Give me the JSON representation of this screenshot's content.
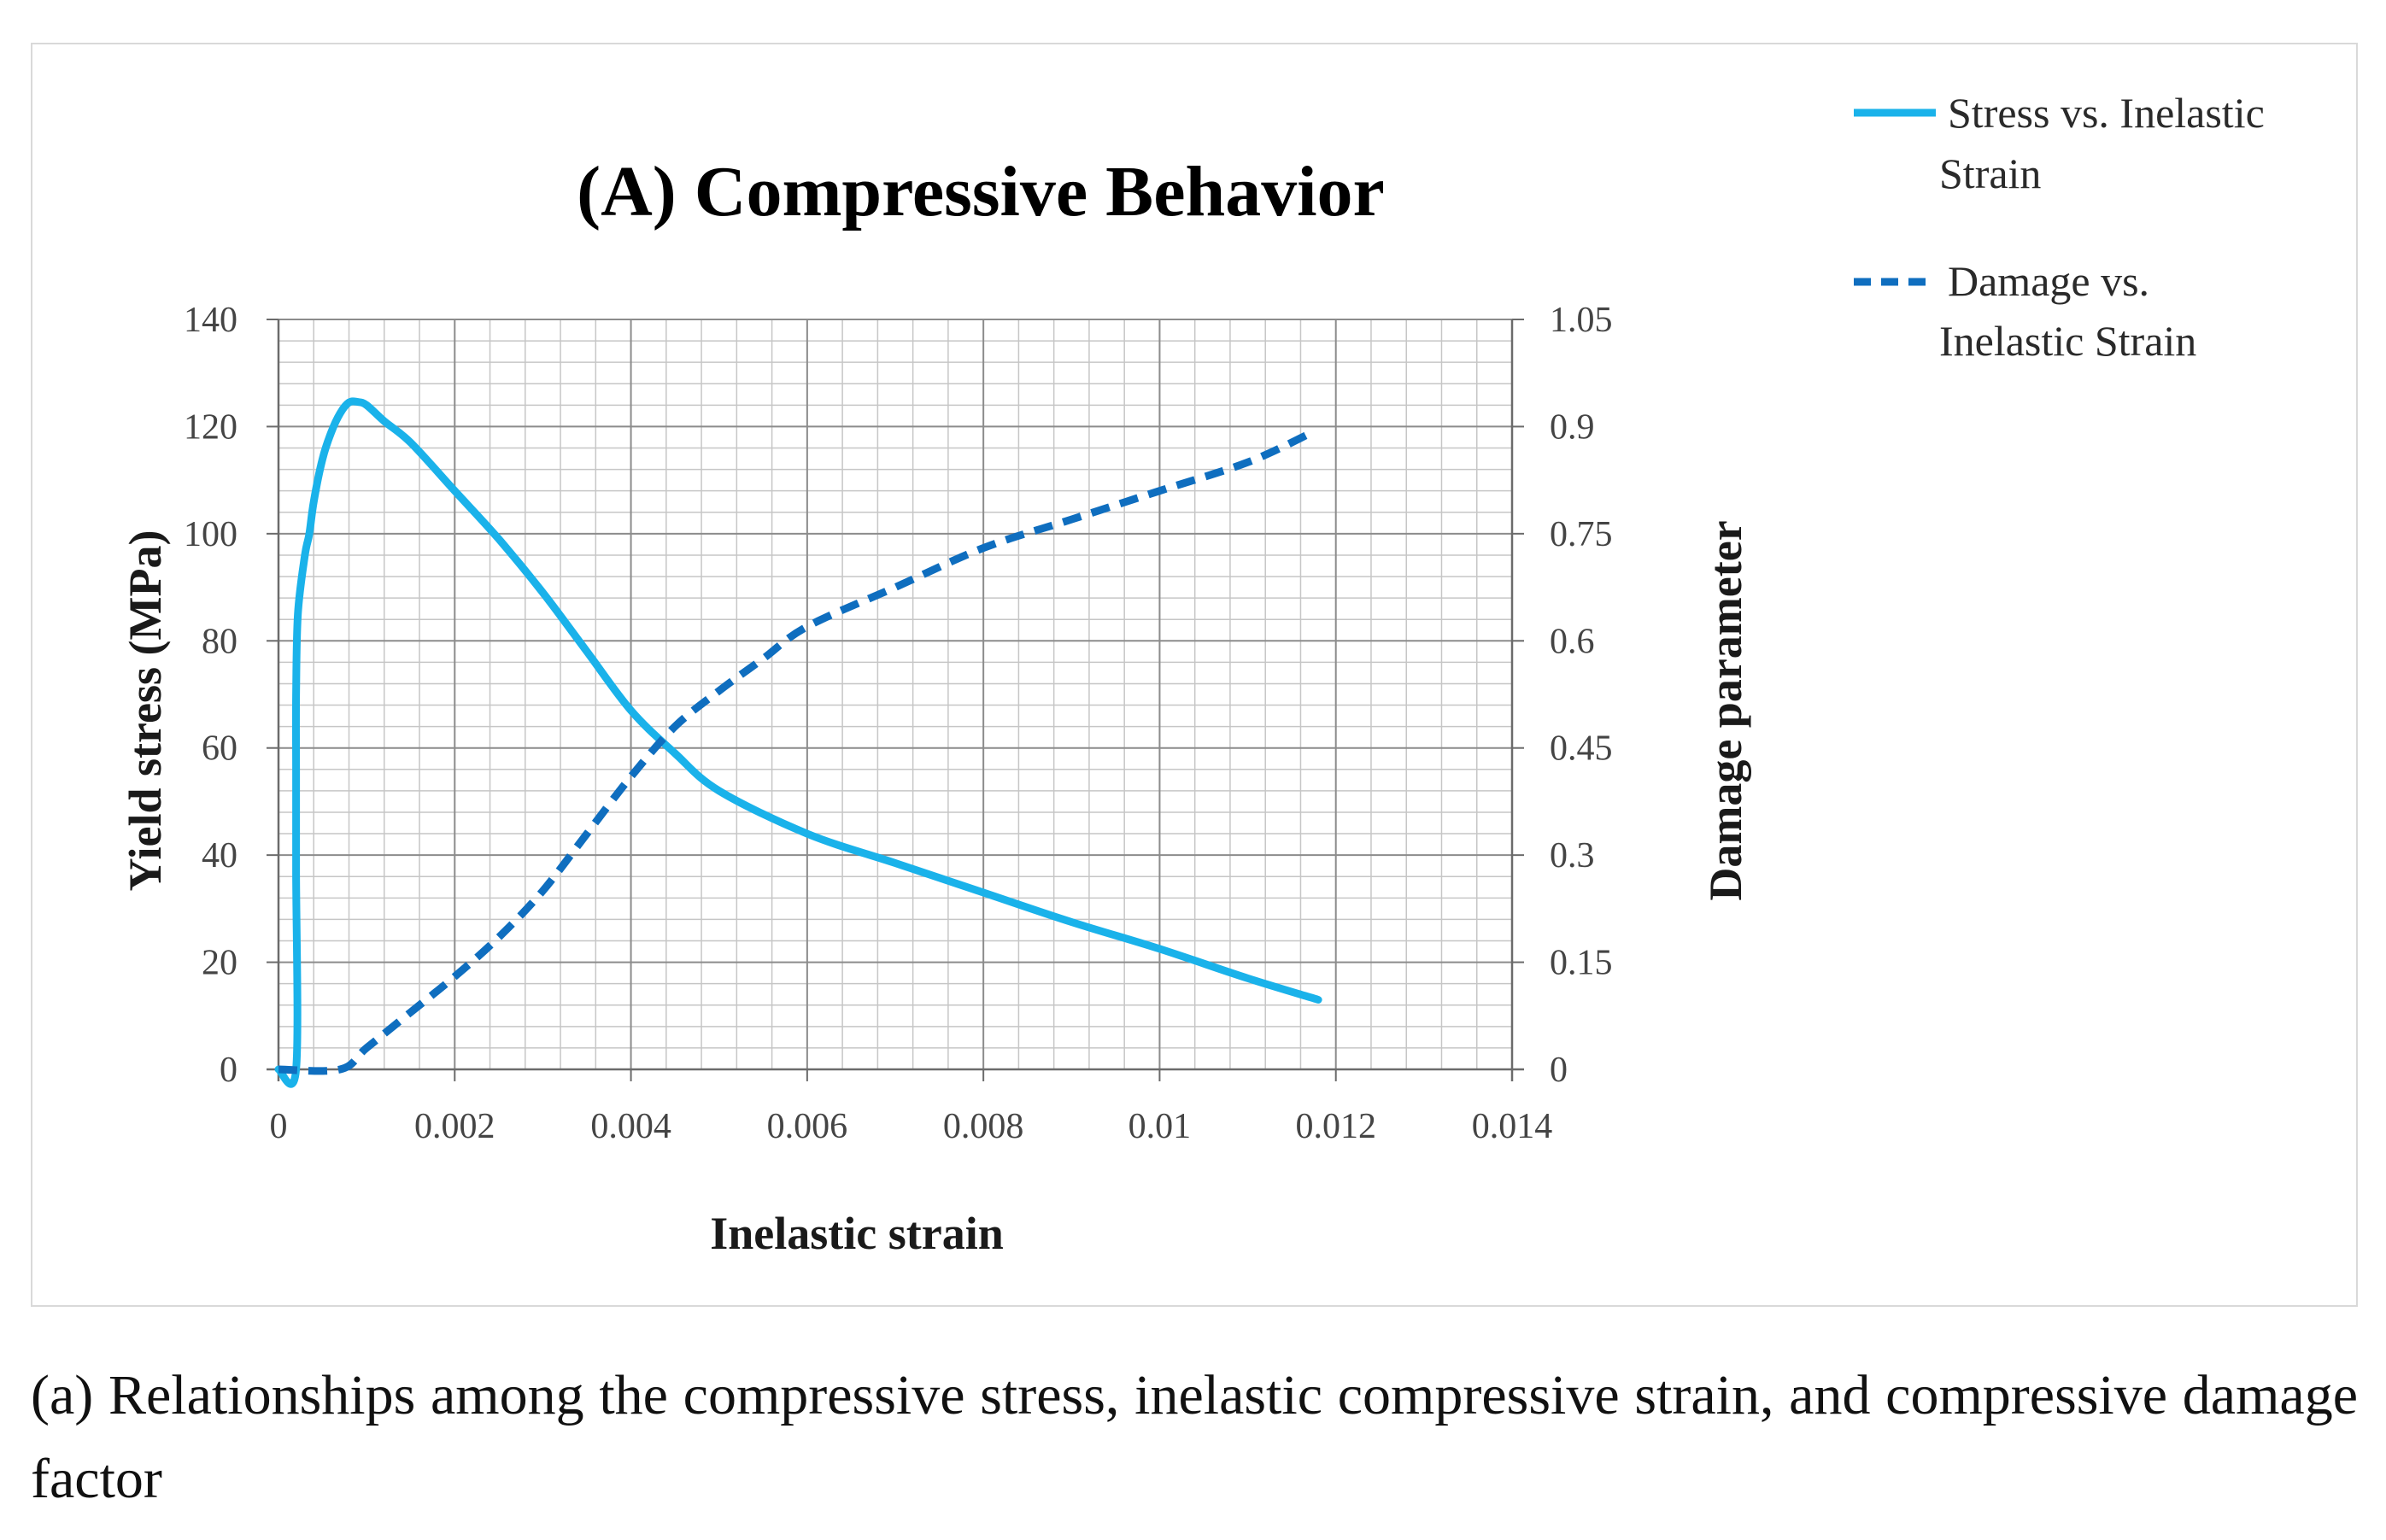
{
  "caption": "(a) Relationships among the compressive stress, inelastic compressive strain, and compressive damage factor",
  "chart_data": {
    "type": "line",
    "title": "(A) Compressive Behavior",
    "xlabel": "Inelastic strain",
    "ylabel": "Yield stress (MPa)",
    "y2label": "Damage parameter",
    "xlim": [
      0,
      0.014
    ],
    "ylim": [
      0,
      140
    ],
    "y2lim": [
      0,
      1.05
    ],
    "x_ticks": [
      "0",
      "0.002",
      "0.004",
      "0.006",
      "0.008",
      "0.01",
      "0.012",
      "0.014"
    ],
    "y_ticks": [
      "0",
      "20",
      "40",
      "60",
      "80",
      "100",
      "120",
      "140"
    ],
    "y2_ticks": [
      "0",
      "0.15",
      "0.3",
      "0.45",
      "0.6",
      "0.75",
      "0.9",
      "1.05"
    ],
    "grid": true,
    "legend_position": "top-right outside",
    "series": [
      {
        "name": "Stress vs. Inelastic Strain",
        "axis": "left",
        "style": "solid",
        "color": "#1ab2ea",
        "points": [
          [
            0.0,
            0
          ],
          [
            0.0002,
            0
          ],
          [
            0.0002,
            37
          ],
          [
            0.0002,
            55
          ],
          [
            0.0002,
            70
          ],
          [
            0.00022,
            85
          ],
          [
            0.0003,
            96
          ],
          [
            0.00035,
            100
          ],
          [
            0.0004,
            106
          ],
          [
            0.0005,
            114
          ],
          [
            0.0006,
            119
          ],
          [
            0.0007,
            122.5
          ],
          [
            0.0008,
            124.5
          ],
          [
            0.0009,
            124.6
          ],
          [
            0.001,
            124
          ],
          [
            0.0012,
            121
          ],
          [
            0.0015,
            117
          ],
          [
            0.002,
            108
          ],
          [
            0.0025,
            99
          ],
          [
            0.003,
            89
          ],
          [
            0.0035,
            78
          ],
          [
            0.004,
            67
          ],
          [
            0.0045,
            59
          ],
          [
            0.005,
            52
          ],
          [
            0.006,
            44
          ],
          [
            0.007,
            38.5
          ],
          [
            0.008,
            33
          ],
          [
            0.009,
            27.5
          ],
          [
            0.01,
            22.5
          ],
          [
            0.011,
            17
          ],
          [
            0.0118,
            13
          ]
        ]
      },
      {
        "name": "Damage vs. Inelastic Strain",
        "axis": "right",
        "style": "dashed",
        "color": "#0f6ebf",
        "points": [
          [
            0.0,
            0
          ],
          [
            0.0007,
            0
          ],
          [
            0.001,
            0.03
          ],
          [
            0.0015,
            0.08
          ],
          [
            0.002,
            0.13
          ],
          [
            0.0025,
            0.185
          ],
          [
            0.003,
            0.25
          ],
          [
            0.0035,
            0.33
          ],
          [
            0.004,
            0.41
          ],
          [
            0.0045,
            0.48
          ],
          [
            0.005,
            0.53
          ],
          [
            0.0055,
            0.575
          ],
          [
            0.006,
            0.62
          ],
          [
            0.007,
            0.675
          ],
          [
            0.008,
            0.73
          ],
          [
            0.009,
            0.77
          ],
          [
            0.01,
            0.81
          ],
          [
            0.011,
            0.85
          ],
          [
            0.0117,
            0.89
          ]
        ]
      }
    ]
  }
}
